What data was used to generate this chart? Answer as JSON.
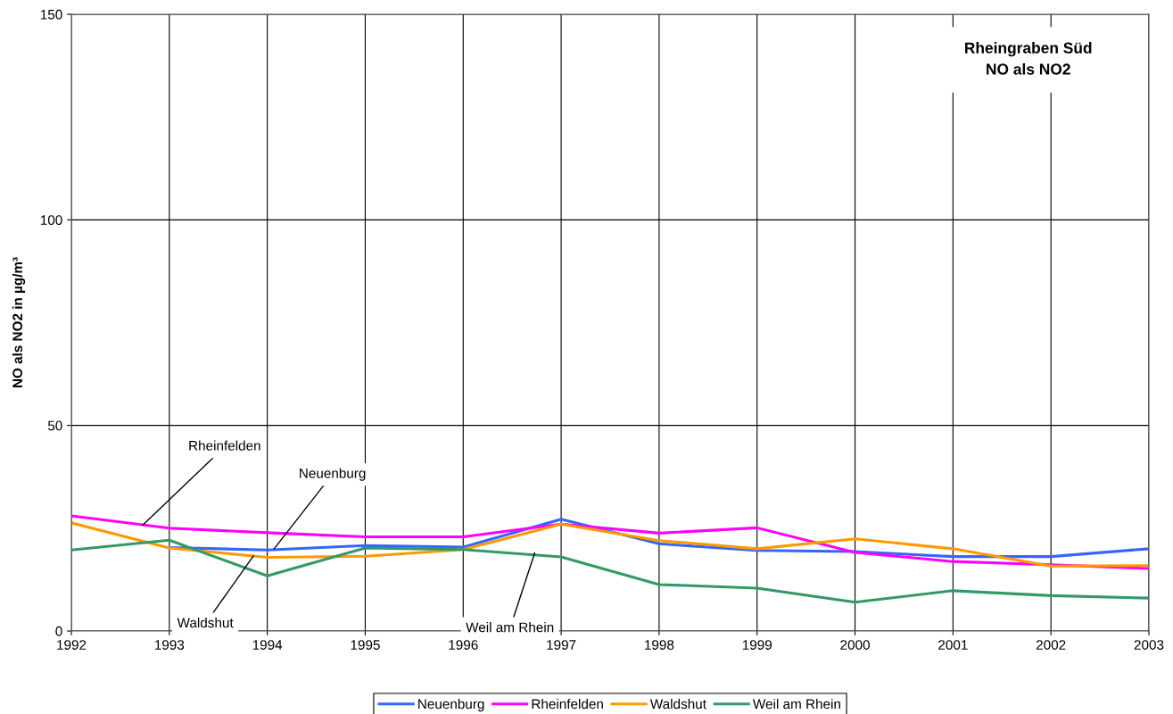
{
  "chart_data": {
    "type": "line",
    "title": "Rheingraben Süd\nNO als NO2",
    "ylabel": "NO als NO2 in µg/m³",
    "x": [
      1992,
      1993,
      1994,
      1995,
      1996,
      1997,
      1998,
      1999,
      2000,
      2001,
      2002,
      2003
    ],
    "series": [
      {
        "name": "Neuenburg",
        "color": "#3366ff",
        "values": [
          null,
          20.3,
          19.7,
          20.8,
          20.4,
          27.2,
          21.2,
          19.6,
          19.3,
          18.1,
          18.1,
          20.0
        ]
      },
      {
        "name": "Rheinfelden",
        "color": "#ff00ff",
        "values": [
          28.0,
          25.0,
          23.9,
          22.9,
          22.9,
          26.0,
          23.8,
          25.1,
          19.1,
          16.9,
          16.1,
          15.2
        ]
      },
      {
        "name": "Waldshut",
        "color": "#ff9900",
        "values": [
          26.3,
          20.2,
          17.9,
          18.2,
          19.8,
          26.0,
          22.0,
          20.0,
          22.4,
          20.0,
          15.8,
          15.9
        ]
      },
      {
        "name": "Weil am Rhein",
        "color": "#339966",
        "values": [
          19.7,
          22.1,
          13.4,
          20.2,
          19.8,
          18.0,
          11.3,
          10.4,
          7.0,
          9.8,
          8.6,
          8.0
        ]
      }
    ],
    "annotations": [
      {
        "text": "Rheinfelden",
        "x": 1992.73,
        "y": 25.8
      },
      {
        "text": "Neuenburg",
        "x": 1994.07,
        "y": 20.0
      },
      {
        "text": "Waldshut",
        "x": 1993.86,
        "y": 18.3
      },
      {
        "text": "Weil am Rhein",
        "x": 1996.73,
        "y": 19.0
      }
    ],
    "xlim": [
      1992,
      2003
    ],
    "xticks": [
      1992,
      1993,
      1994,
      1995,
      1996,
      1997,
      1998,
      1999,
      2000,
      2001,
      2002,
      2003
    ],
    "ylim": [
      0,
      150
    ],
    "yticks": [
      0,
      50,
      100,
      150
    ],
    "grid": true,
    "legend": "bottom",
    "marker": "none",
    "line_style": "solid"
  }
}
